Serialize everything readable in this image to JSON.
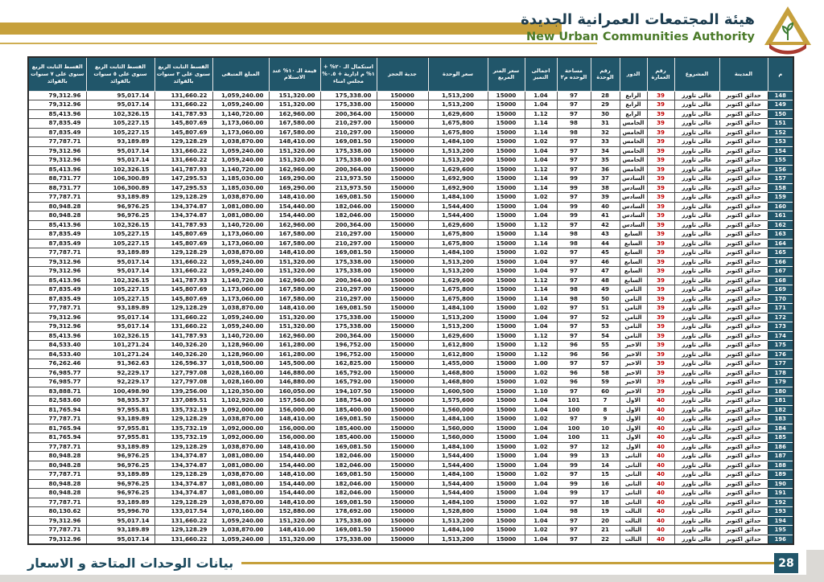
{
  "header": {
    "org_ar": "هيئة المجتمعات العمرانية الجديدة",
    "org_en": "New Urban Communities Authority"
  },
  "footer": {
    "title": "بيانات الوحدات المتاحة و الاسعار",
    "page_number": "28"
  },
  "colors": {
    "teal": "#21566a",
    "gold": "#c6a03c",
    "red": "#c00000",
    "green": "#4a7a28"
  },
  "table": {
    "columns": [
      "م",
      "المدينة",
      "المشروع",
      "رقم العمارة",
      "الدور",
      "رقم الوحدة",
      "مساحة الوحده م٢",
      "اجمالى التميز",
      "سعر المتر المربع",
      "سعر الوحدة",
      "جدية الحجز",
      "استكمال الـ ٢٠% + ١% م ادارية + ٠.٥% مجلس امناء",
      "قيمة الـ ١٠% عند الاستلام",
      "المبلغ المتبقى",
      "القسط الثابت الربع سنوى على ٣ سنوات بالفوائد",
      "القسط الثابت الربع سنوى على ٥ سنوات بالفوائد",
      "القسط الثابت الربع سنوى على ٧ سنوات بالفوائد"
    ],
    "rows": [
      [
        "148",
        "حدائق اكتوبر",
        "غالى تاورز",
        "39",
        "الرابع",
        "28",
        "97",
        "1.04",
        "15000",
        "1,513,200",
        "150000",
        "175,338.00",
        "151,320.00",
        "1,059,240.00",
        "131,660.22",
        "95,017.14",
        "79,312.96"
      ],
      [
        "149",
        "حدائق اكتوبر",
        "غالى تاورز",
        "39",
        "الرابع",
        "29",
        "97",
        "1.04",
        "15000",
        "1,513,200",
        "150000",
        "175,338.00",
        "151,320.00",
        "1,059,240.00",
        "131,660.22",
        "95,017.14",
        "79,312.96"
      ],
      [
        "150",
        "حدائق اكتوبر",
        "غالى تاورز",
        "39",
        "الرابع",
        "30",
        "97",
        "1.12",
        "15000",
        "1,629,600",
        "150000",
        "200,364.00",
        "162,960.00",
        "1,140,720.00",
        "141,787.93",
        "102,326.15",
        "85,413.96"
      ],
      [
        "151",
        "حدائق اكتوبر",
        "غالى تاورز",
        "39",
        "الخامس",
        "31",
        "98",
        "1.14",
        "15000",
        "1,675,800",
        "150000",
        "210,297.00",
        "167,580.00",
        "1,173,060.00",
        "145,807.69",
        "105,227.15",
        "87,835.49"
      ],
      [
        "152",
        "حدائق اكتوبر",
        "غالى تاورز",
        "39",
        "الخامس",
        "32",
        "98",
        "1.14",
        "15000",
        "1,675,800",
        "150000",
        "210,297.00",
        "167,580.00",
        "1,173,060.00",
        "145,807.69",
        "105,227.15",
        "87,835.49"
      ],
      [
        "153",
        "حدائق اكتوبر",
        "غالى تاورز",
        "39",
        "الخامس",
        "33",
        "97",
        "1.02",
        "15000",
        "1,484,100",
        "150000",
        "169,081.50",
        "148,410.00",
        "1,038,870.00",
        "129,128.29",
        "93,189.89",
        "77,787.71"
      ],
      [
        "154",
        "حدائق اكتوبر",
        "غالى تاورز",
        "39",
        "الخامس",
        "34",
        "97",
        "1.04",
        "15000",
        "1,513,200",
        "150000",
        "175,338.00",
        "151,320.00",
        "1,059,240.00",
        "131,660.22",
        "95,017.14",
        "79,312.96"
      ],
      [
        "155",
        "حدائق اكتوبر",
        "غالى تاورز",
        "39",
        "الخامس",
        "35",
        "97",
        "1.04",
        "15000",
        "1,513,200",
        "150000",
        "175,338.00",
        "151,320.00",
        "1,059,240.00",
        "131,660.22",
        "95,017.14",
        "79,312.96"
      ],
      [
        "156",
        "حدائق اكتوبر",
        "غالى تاورز",
        "39",
        "الخامس",
        "36",
        "97",
        "1.12",
        "15000",
        "1,629,600",
        "150000",
        "200,364.00",
        "162,960.00",
        "1,140,720.00",
        "141,787.93",
        "102,326.15",
        "85,413.96"
      ],
      [
        "157",
        "حدائق اكتوبر",
        "غالى تاورز",
        "39",
        "السادس",
        "37",
        "99",
        "1.14",
        "15000",
        "1,692,900",
        "150000",
        "213,973.50",
        "169,290.00",
        "1,185,030.00",
        "147,295.53",
        "106,300.89",
        "88,731.77"
      ],
      [
        "158",
        "حدائق اكتوبر",
        "غالى تاورز",
        "39",
        "السادس",
        "38",
        "99",
        "1.14",
        "15000",
        "1,692,900",
        "150000",
        "213,973.50",
        "169,290.00",
        "1,185,030.00",
        "147,295.53",
        "106,300.89",
        "88,731.77"
      ],
      [
        "159",
        "حدائق اكتوبر",
        "غالى تاورز",
        "39",
        "السادس",
        "39",
        "97",
        "1.02",
        "15000",
        "1,484,100",
        "150000",
        "169,081.50",
        "148,410.00",
        "1,038,870.00",
        "129,128.29",
        "93,189.89",
        "77,787.71"
      ],
      [
        "160",
        "حدائق اكتوبر",
        "غالى تاورز",
        "39",
        "السادس",
        "40",
        "99",
        "1.04",
        "15000",
        "1,544,400",
        "150000",
        "182,046.00",
        "154,440.00",
        "1,081,080.00",
        "134,374.87",
        "96,976.25",
        "80,948.28"
      ],
      [
        "161",
        "حدائق اكتوبر",
        "غالى تاورز",
        "39",
        "السادس",
        "41",
        "99",
        "1.04",
        "15000",
        "1,544,400",
        "150000",
        "182,046.00",
        "154,440.00",
        "1,081,080.00",
        "134,374.87",
        "96,976.25",
        "80,948.28"
      ],
      [
        "162",
        "حدائق اكتوبر",
        "غالى تاورز",
        "39",
        "السادس",
        "42",
        "97",
        "1.12",
        "15000",
        "1,629,600",
        "150000",
        "200,364.00",
        "162,960.00",
        "1,140,720.00",
        "141,787.93",
        "102,326.15",
        "85,413.96"
      ],
      [
        "163",
        "حدائق اكتوبر",
        "غالى تاورز",
        "39",
        "السابع",
        "43",
        "98",
        "1.14",
        "15000",
        "1,675,800",
        "150000",
        "210,297.00",
        "167,580.00",
        "1,173,060.00",
        "145,807.69",
        "105,227.15",
        "87,835.49"
      ],
      [
        "164",
        "حدائق اكتوبر",
        "غالى تاورز",
        "39",
        "السابع",
        "44",
        "98",
        "1.14",
        "15000",
        "1,675,800",
        "150000",
        "210,297.00",
        "167,580.00",
        "1,173,060.00",
        "145,807.69",
        "105,227.15",
        "87,835.49"
      ],
      [
        "165",
        "حدائق اكتوبر",
        "غالى تاورز",
        "39",
        "السابع",
        "45",
        "97",
        "1.02",
        "15000",
        "1,484,100",
        "150000",
        "169,081.50",
        "148,410.00",
        "1,038,870.00",
        "129,128.29",
        "93,189.89",
        "77,787.71"
      ],
      [
        "166",
        "حدائق اكتوبر",
        "غالى تاورز",
        "39",
        "السابع",
        "46",
        "97",
        "1.04",
        "15000",
        "1,513,200",
        "150000",
        "175,338.00",
        "151,320.00",
        "1,059,240.00",
        "131,660.22",
        "95,017.14",
        "79,312.96"
      ],
      [
        "167",
        "حدائق اكتوبر",
        "غالى تاورز",
        "39",
        "السابع",
        "47",
        "97",
        "1.04",
        "15000",
        "1,513,200",
        "150000",
        "175,338.00",
        "151,320.00",
        "1,059,240.00",
        "131,660.22",
        "95,017.14",
        "79,312.96"
      ],
      [
        "168",
        "حدائق اكتوبر",
        "غالى تاورز",
        "39",
        "السابع",
        "48",
        "97",
        "1.12",
        "15000",
        "1,629,600",
        "150000",
        "200,364.00",
        "162,960.00",
        "1,140,720.00",
        "141,787.93",
        "102,326.15",
        "85,413.96"
      ],
      [
        "169",
        "حدائق اكتوبر",
        "غالى تاورز",
        "39",
        "الثامن",
        "49",
        "98",
        "1.14",
        "15000",
        "1,675,800",
        "150000",
        "210,297.00",
        "167,580.00",
        "1,173,060.00",
        "145,807.69",
        "105,227.15",
        "87,835.49"
      ],
      [
        "170",
        "حدائق اكتوبر",
        "غالى تاورز",
        "39",
        "الثامن",
        "50",
        "98",
        "1.14",
        "15000",
        "1,675,800",
        "150000",
        "210,297.00",
        "167,580.00",
        "1,173,060.00",
        "145,807.69",
        "105,227.15",
        "87,835.49"
      ],
      [
        "171",
        "حدائق اكتوبر",
        "غالى تاورز",
        "39",
        "الثامن",
        "51",
        "97",
        "1.02",
        "15000",
        "1,484,100",
        "150000",
        "169,081.50",
        "148,410.00",
        "1,038,870.00",
        "129,128.29",
        "93,189.89",
        "77,787.71"
      ],
      [
        "172",
        "حدائق اكتوبر",
        "غالى تاورز",
        "39",
        "الثامن",
        "52",
        "97",
        "1.04",
        "15000",
        "1,513,200",
        "150000",
        "175,338.00",
        "151,320.00",
        "1,059,240.00",
        "131,660.22",
        "95,017.14",
        "79,312.96"
      ],
      [
        "173",
        "حدائق اكتوبر",
        "غالى تاورز",
        "39",
        "الثامن",
        "53",
        "97",
        "1.04",
        "15000",
        "1,513,200",
        "150000",
        "175,338.00",
        "151,320.00",
        "1,059,240.00",
        "131,660.22",
        "95,017.14",
        "79,312.96"
      ],
      [
        "174",
        "حدائق اكتوبر",
        "غالى تاورز",
        "39",
        "الثامن",
        "54",
        "97",
        "1.12",
        "15000",
        "1,629,600",
        "150000",
        "200,364.00",
        "162,960.00",
        "1,140,720.00",
        "141,787.93",
        "102,326.15",
        "85,413.96"
      ],
      [
        "175",
        "حدائق اكتوبر",
        "غالى تاورز",
        "39",
        "الاخير",
        "55",
        "96",
        "1.12",
        "15000",
        "1,612,800",
        "150000",
        "196,752.00",
        "161,280.00",
        "1,128,960.00",
        "140,326.20",
        "101,271.24",
        "84,533.40"
      ],
      [
        "176",
        "حدائق اكتوبر",
        "غالى تاورز",
        "39",
        "الاخير",
        "56",
        "96",
        "1.12",
        "15000",
        "1,612,800",
        "150000",
        "196,752.00",
        "161,280.00",
        "1,128,960.00",
        "140,326.20",
        "101,271.24",
        "84,533.40"
      ],
      [
        "177",
        "حدائق اكتوبر",
        "غالى تاورز",
        "39",
        "الاخير",
        "57",
        "97",
        "1.00",
        "15000",
        "1,455,000",
        "150000",
        "162,825.00",
        "145,500.00",
        "1,018,500.00",
        "126,596.37",
        "91,362.63",
        "76,262.46"
      ],
      [
        "178",
        "حدائق اكتوبر",
        "غالى تاورز",
        "39",
        "الاخير",
        "58",
        "96",
        "1.02",
        "15000",
        "1,468,800",
        "150000",
        "165,792.00",
        "146,880.00",
        "1,028,160.00",
        "127,797.08",
        "92,229.17",
        "76,985.77"
      ],
      [
        "179",
        "حدائق اكتوبر",
        "غالى تاورز",
        "39",
        "الاخير",
        "59",
        "96",
        "1.02",
        "15000",
        "1,468,800",
        "150000",
        "165,792.00",
        "146,880.00",
        "1,028,160.00",
        "127,797.08",
        "92,229.17",
        "76,985.77"
      ],
      [
        "180",
        "حدائق اكتوبر",
        "غالى تاورز",
        "39",
        "الاخير",
        "60",
        "97",
        "1.10",
        "15000",
        "1,600,500",
        "150000",
        "194,107.50",
        "160,050.00",
        "1,120,350.00",
        "139,256.00",
        "100,498.90",
        "83,888.71"
      ],
      [
        "181",
        "حدائق اكتوبر",
        "غالى تاورز",
        "40",
        "الاول",
        "7",
        "101",
        "1.04",
        "15000",
        "1,575,600",
        "150000",
        "188,754.00",
        "157,560.00",
        "1,102,920.00",
        "137,089.51",
        "98,935.37",
        "82,583.60"
      ],
      [
        "182",
        "حدائق اكتوبر",
        "غالى تاورز",
        "40",
        "الاول",
        "8",
        "100",
        "1.04",
        "15000",
        "1,560,000",
        "150000",
        "185,400.00",
        "156,000.00",
        "1,092,000.00",
        "135,732.19",
        "97,955.81",
        "81,765.94"
      ],
      [
        "183",
        "حدائق اكتوبر",
        "غالى تاورز",
        "40",
        "الاول",
        "9",
        "97",
        "1.02",
        "15000",
        "1,484,100",
        "150000",
        "169,081.50",
        "148,410.00",
        "1,038,870.00",
        "129,128.29",
        "93,189.89",
        "77,787.71"
      ],
      [
        "184",
        "حدائق اكتوبر",
        "غالى تاورز",
        "40",
        "الاول",
        "10",
        "100",
        "1.04",
        "15000",
        "1,560,000",
        "150000",
        "185,400.00",
        "156,000.00",
        "1,092,000.00",
        "135,732.19",
        "97,955.81",
        "81,765.94"
      ],
      [
        "185",
        "حدائق اكتوبر",
        "غالى تاورز",
        "40",
        "الاول",
        "11",
        "100",
        "1.04",
        "15000",
        "1,560,000",
        "150000",
        "185,400.00",
        "156,000.00",
        "1,092,000.00",
        "135,732.19",
        "97,955.81",
        "81,765.94"
      ],
      [
        "186",
        "حدائق اكتوبر",
        "غالى تاورز",
        "40",
        "الاول",
        "12",
        "97",
        "1.02",
        "15000",
        "1,484,100",
        "150000",
        "169,081.50",
        "148,410.00",
        "1,038,870.00",
        "129,128.29",
        "93,189.89",
        "77,787.71"
      ],
      [
        "187",
        "حدائق اكتوبر",
        "غالى تاورز",
        "40",
        "التانى",
        "13",
        "99",
        "1.04",
        "15000",
        "1,544,400",
        "150000",
        "182,046.00",
        "154,440.00",
        "1,081,080.00",
        "134,374.87",
        "96,976.25",
        "80,948.28"
      ],
      [
        "188",
        "حدائق اكتوبر",
        "غالى تاورز",
        "40",
        "التانى",
        "14",
        "99",
        "1.04",
        "15000",
        "1,544,400",
        "150000",
        "182,046.00",
        "154,440.00",
        "1,081,080.00",
        "134,374.87",
        "96,976.25",
        "80,948.28"
      ],
      [
        "189",
        "حدائق اكتوبر",
        "غالى تاورز",
        "40",
        "التانى",
        "15",
        "97",
        "1.02",
        "15000",
        "1,484,100",
        "150000",
        "169,081.50",
        "148,410.00",
        "1,038,870.00",
        "129,128.29",
        "93,189.89",
        "77,787.71"
      ],
      [
        "190",
        "حدائق اكتوبر",
        "غالى تاورز",
        "40",
        "التانى",
        "16",
        "99",
        "1.04",
        "15000",
        "1,544,400",
        "150000",
        "182,046.00",
        "154,440.00",
        "1,081,080.00",
        "134,374.87",
        "96,976.25",
        "80,948.28"
      ],
      [
        "191",
        "حدائق اكتوبر",
        "غالى تاورز",
        "40",
        "التانى",
        "17",
        "99",
        "1.04",
        "15000",
        "1,544,400",
        "150000",
        "182,046.00",
        "154,440.00",
        "1,081,080.00",
        "134,374.87",
        "96,976.25",
        "80,948.28"
      ],
      [
        "192",
        "حدائق اكتوبر",
        "غالى تاورز",
        "40",
        "التانى",
        "18",
        "97",
        "1.02",
        "15000",
        "1,484,100",
        "150000",
        "169,081.50",
        "148,410.00",
        "1,038,870.00",
        "129,128.29",
        "93,189.89",
        "77,787.71"
      ],
      [
        "193",
        "حدائق اكتوبر",
        "غالى تاورز",
        "40",
        "التالت",
        "19",
        "98",
        "1.04",
        "15000",
        "1,528,800",
        "150000",
        "178,692.00",
        "152,880.00",
        "1,070,160.00",
        "133,017.54",
        "95,996.70",
        "80,130.62"
      ],
      [
        "194",
        "حدائق اكتوبر",
        "غالى تاورز",
        "40",
        "التالت",
        "20",
        "97",
        "1.04",
        "15000",
        "1,513,200",
        "150000",
        "175,338.00",
        "151,320.00",
        "1,059,240.00",
        "131,660.22",
        "95,017.14",
        "79,312.96"
      ],
      [
        "195",
        "حدائق اكتوبر",
        "غالى تاورز",
        "40",
        "التالت",
        "21",
        "97",
        "1.02",
        "15000",
        "1,484,100",
        "150000",
        "169,081.50",
        "148,410.00",
        "1,038,870.00",
        "129,128.29",
        "93,189.89",
        "77,787.71"
      ],
      [
        "196",
        "حدائق اكتوبر",
        "غالى تاورز",
        "40",
        "التالت",
        "22",
        "97",
        "1.04",
        "15000",
        "1,513,200",
        "150000",
        "175,338.00",
        "151,320.00",
        "1,059,240.00",
        "131,660.22",
        "95,017.14",
        "79,312.96"
      ]
    ]
  }
}
